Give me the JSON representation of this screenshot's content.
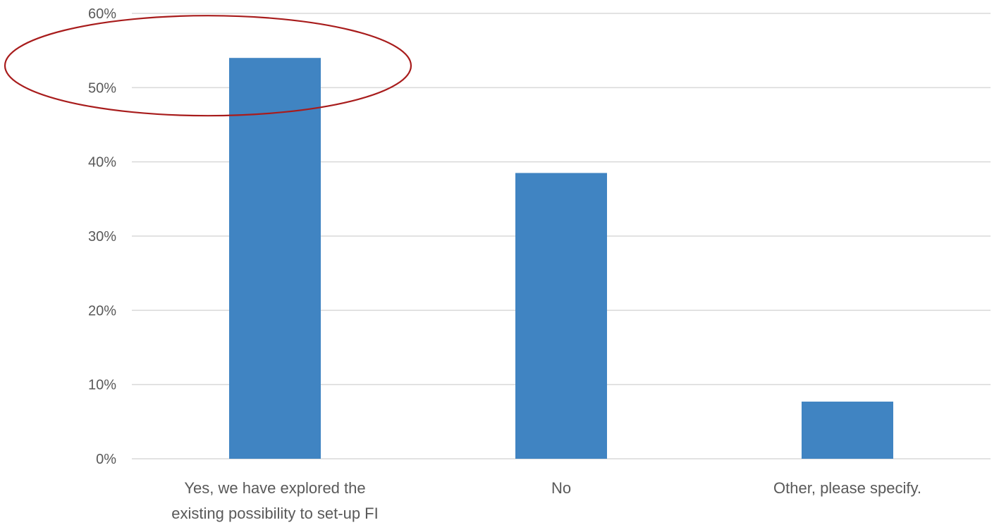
{
  "chart_data": {
    "type": "bar",
    "categories": [
      [
        "Yes, we have explored the",
        "existing possibility to set-up FI"
      ],
      [
        "No"
      ],
      [
        "Other, please specify."
      ]
    ],
    "values": [
      54,
      38.5,
      7.7
    ],
    "y_ticks": [
      "0%",
      "10%",
      "20%",
      "30%",
      "40%",
      "50%",
      "60%"
    ],
    "ylim": [
      0,
      60
    ],
    "y_unit": "%",
    "grid": true,
    "legend": "none",
    "highlight": {
      "category_index": 0,
      "shape": "ellipse"
    },
    "colors": {
      "bar": "#4084c2",
      "grid": "#d9d9d9",
      "text": "#595959",
      "highlight": "#a81c1c"
    }
  }
}
